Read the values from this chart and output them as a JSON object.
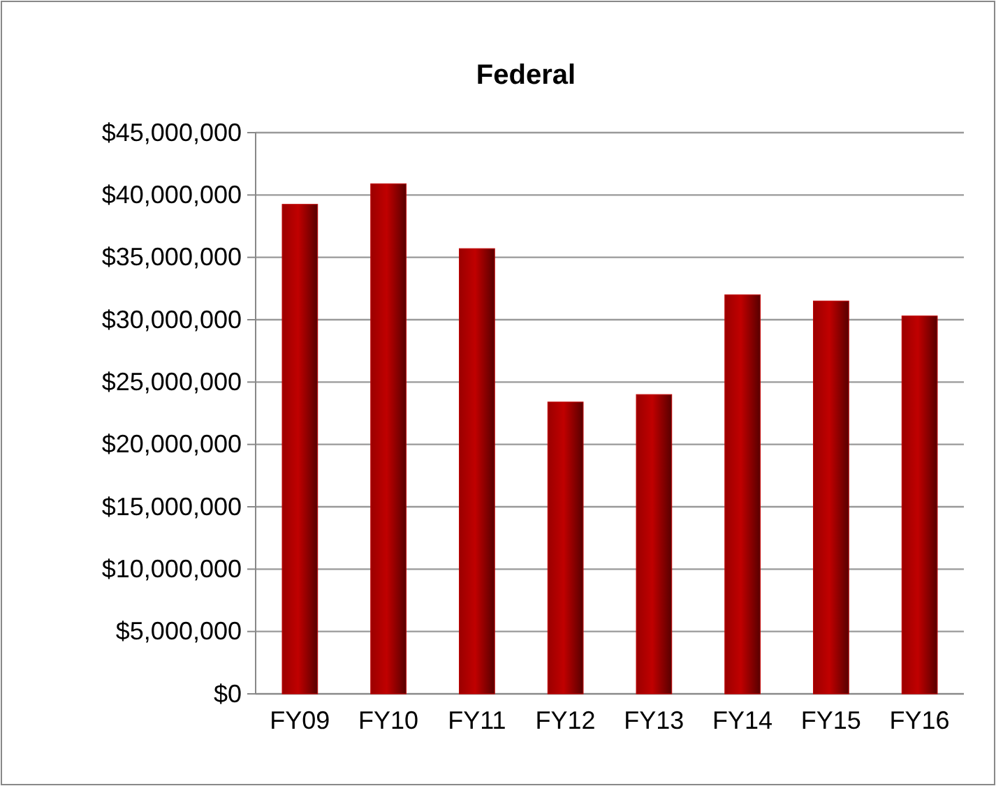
{
  "chart_data": {
    "type": "bar",
    "title": "Federal",
    "categories": [
      "FY09",
      "FY10",
      "FY11",
      "FY12",
      "FY13",
      "FY14",
      "FY15",
      "FY16"
    ],
    "values": [
      39250000,
      40900000,
      35700000,
      23400000,
      24000000,
      32000000,
      31500000,
      30300000
    ],
    "color": "#c00000",
    "ylim": [
      0,
      45000000
    ],
    "yticks": [
      {
        "value": 0,
        "label": "$0"
      },
      {
        "value": 5000000,
        "label": "$5,000,000"
      },
      {
        "value": 10000000,
        "label": "$10,000,000"
      },
      {
        "value": 15000000,
        "label": "$15,000,000"
      },
      {
        "value": 20000000,
        "label": "$20,000,000"
      },
      {
        "value": 25000000,
        "label": "$25,000,000"
      },
      {
        "value": 30000000,
        "label": "$30,000,000"
      },
      {
        "value": 35000000,
        "label": "$35,000,000"
      },
      {
        "value": 40000000,
        "label": "$40,000,000"
      },
      {
        "value": 45000000,
        "label": "$45,000,000"
      }
    ],
    "grid": "y"
  }
}
